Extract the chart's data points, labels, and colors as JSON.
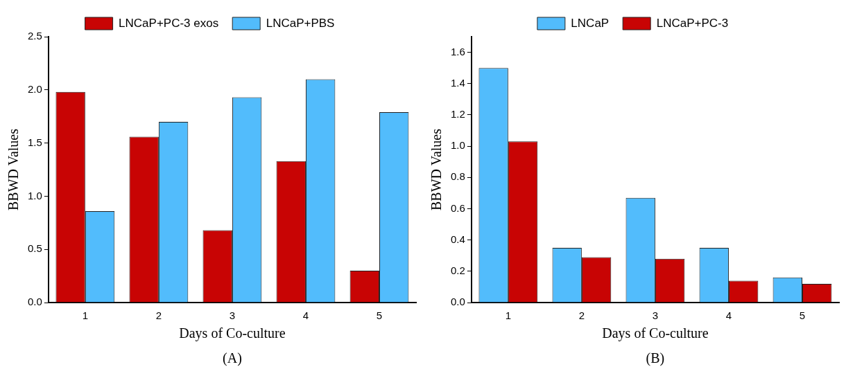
{
  "chart_data": [
    {
      "type": "bar",
      "xlabel": "Days of Co-culture",
      "ylabel": "BBWD Values",
      "annotations": [
        "(A)"
      ],
      "categories": [
        "1",
        "2",
        "3",
        "4",
        "5"
      ],
      "series": [
        {
          "name": "LNCaP+PC-3 exos",
          "color": "#c80404",
          "values": [
            1.98,
            1.56,
            0.68,
            1.33,
            0.3
          ]
        },
        {
          "name": "LNCaP+PBS",
          "color": "#52bcfc",
          "values": [
            0.86,
            1.7,
            1.93,
            2.1,
            1.79
          ]
        }
      ],
      "ylim": [
        0,
        2.5
      ],
      "yticks": [
        {
          "value": 0,
          "label": "0.0"
        },
        0.5,
        {
          "value": 1,
          "label": "1.0"
        },
        1.5,
        {
          "value": 2,
          "label": "2.0"
        },
        2.5
      ],
      "grid": false,
      "legend": "top"
    },
    {
      "type": "bar",
      "xlabel": "Days of Co-culture",
      "ylabel": "BBWD Values",
      "annotations": [
        "(B)"
      ],
      "categories": [
        "1",
        "2",
        "3",
        "4",
        "5"
      ],
      "series": [
        {
          "name": "LNCaP",
          "color": "#52bcfc",
          "values": [
            1.5,
            0.35,
            0.67,
            0.35,
            0.16
          ]
        },
        {
          "name": "LNCaP+PC-3",
          "color": "#c80404",
          "values": [
            1.03,
            0.29,
            0.28,
            0.14,
            0.12
          ]
        }
      ],
      "ylim": [
        0,
        1.7
      ],
      "yticks": [
        {
          "value": 0,
          "label": "0.0"
        },
        0.2,
        0.4,
        0.6,
        0.8,
        {
          "value": 1,
          "label": "1.0"
        },
        1.2,
        1.4,
        1.6
      ],
      "grid": false,
      "legend": "top"
    }
  ]
}
